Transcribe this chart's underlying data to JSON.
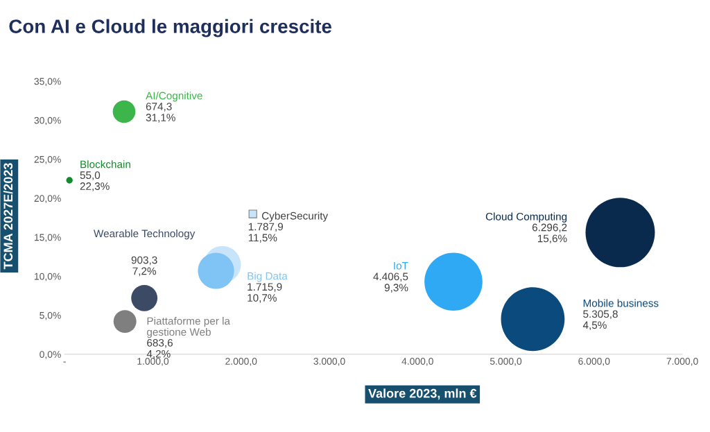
{
  "chart_data": {
    "type": "bubble",
    "title": "Con AI e Cloud le maggiori crescite",
    "xlabel": "Valore 2023, mln €",
    "ylabel": "TCMA 2027E/2023",
    "xlim": [
      0,
      7000
    ],
    "xticks": [
      {
        "value": 0,
        "label": "-"
      },
      {
        "value": 1000,
        "label": "1.000,0"
      },
      {
        "value": 2000,
        "label": "2.000,0"
      },
      {
        "value": 3000,
        "label": "3.000,0"
      },
      {
        "value": 4000,
        "label": "4.000,0"
      },
      {
        "value": 5000,
        "label": "5.000,0"
      },
      {
        "value": 6000,
        "label": "6.000,0"
      },
      {
        "value": 7000,
        "label": "7.000,0"
      }
    ],
    "ylim": [
      0,
      35
    ],
    "yticks": [
      {
        "value": 0,
        "label": "0,0%"
      },
      {
        "value": 5,
        "label": "5,0%"
      },
      {
        "value": 10,
        "label": "10,0%"
      },
      {
        "value": 15,
        "label": "15,0%"
      },
      {
        "value": 20,
        "label": "20,0%"
      },
      {
        "value": 25,
        "label": "25,0%"
      },
      {
        "value": 30,
        "label": "30,0%"
      },
      {
        "value": 35,
        "label": "35,0%"
      }
    ],
    "series": [
      {
        "name": "AI/Cognitive",
        "color": "#3cb54a",
        "x": [
          674.3
        ],
        "values": [
          31.1
        ],
        "sizes": [
          0.1071
        ],
        "value_labels": [
          "674,3\n31,1%"
        ]
      },
      {
        "name": "Blockchain",
        "color": "#138a2c",
        "x": [
          55.0
        ],
        "values": [
          22.3
        ],
        "sizes": [
          0.0087
        ],
        "value_labels": [
          "55,0\n22,3%"
        ]
      },
      {
        "name": "CyberSecurity",
        "color": "#c8e4fb",
        "x": [
          1787.9
        ],
        "values": [
          11.5
        ],
        "sizes": [
          0.284
        ],
        "value_labels": [
          "1.787,9\n11,5%"
        ]
      },
      {
        "name": "Big Data",
        "color": "#80c4f5",
        "x": [
          1715.9
        ],
        "values": [
          10.7
        ],
        "sizes": [
          0.2725
        ],
        "value_labels": [
          "1.715,9\n10,7%"
        ]
      },
      {
        "name": "Wearable Technology",
        "color": "#3d4a66",
        "x": [
          903.3
        ],
        "values": [
          7.2
        ],
        "sizes": [
          0.1435
        ],
        "value_labels": [
          "903,3\n7,2%"
        ]
      },
      {
        "name": "Piattaforme per la\ngestione Web",
        "color": "#7f7f7f",
        "x": [
          683.6
        ],
        "values": [
          4.2
        ],
        "sizes": [
          0.1086
        ],
        "value_labels": [
          "683,6\n4,2%"
        ]
      },
      {
        "name": "IoT",
        "color": "#30a9f5",
        "x": [
          4406.5
        ],
        "values": [
          9.3
        ],
        "sizes": [
          0.6999
        ],
        "value_labels": [
          "4.406,5\n9,3%"
        ]
      },
      {
        "name": "Cloud Computing",
        "color": "#0a2a4d",
        "x": [
          6296.2
        ],
        "values": [
          15.6
        ],
        "sizes": [
          1
        ],
        "value_labels": [
          "6.296,2\n15,6%"
        ]
      },
      {
        "name": "Mobile business",
        "color": "#0b4a7d",
        "x": [
          5305.8
        ],
        "values": [
          4.5
        ],
        "sizes": [
          0.8427
        ],
        "value_labels": [
          "5.305,8\n4,5%"
        ]
      }
    ]
  }
}
